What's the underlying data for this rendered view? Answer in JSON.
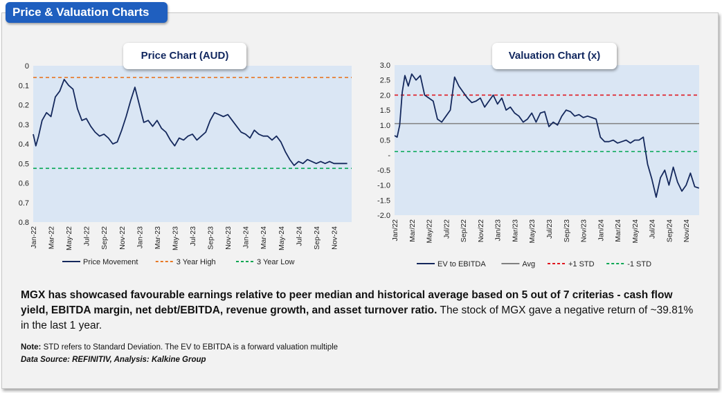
{
  "header": {
    "title": "Price & Valuation Charts"
  },
  "chart_data": [
    {
      "type": "line",
      "title": "Price Chart (AUD)",
      "x_tick_labels": [
        "Jan-22",
        "Mar-22",
        "May-22",
        "Jul-22",
        "Sep-22",
        "Nov-22",
        "Jan-23",
        "Mar-23",
        "May-23",
        "Jul-23",
        "Sep-23",
        "Nov-23",
        "Jan-24",
        "Mar-24",
        "May-24",
        "Jul-24",
        "Sep-24",
        "Nov-24"
      ],
      "y_ticks": [
        "0",
        "0.1",
        "0.2",
        "0.3",
        "0.4",
        "0.5",
        "0.6",
        "0.7",
        "0.8"
      ],
      "ylim": [
        0,
        0.8
      ],
      "xlim": [
        0,
        36
      ],
      "legend": [
        "Price Movement",
        "3 Year High",
        "3 Year Low"
      ],
      "reference_lines": [
        {
          "name": "3 Year High",
          "value": 0.74,
          "color": "#e87722",
          "dash": true
        },
        {
          "name": "3 Year Low",
          "value": 0.275,
          "color": "#00a651",
          "dash": true
        }
      ],
      "series": [
        {
          "name": "Price Movement",
          "color": "#14285c",
          "x": [
            0,
            0.3,
            0.6,
            1,
            1.5,
            2,
            2.5,
            3,
            3.5,
            4,
            4.5,
            5,
            5.5,
            6,
            6.5,
            7,
            7.5,
            8,
            8.5,
            9,
            9.5,
            10,
            10.5,
            11,
            11.5,
            12,
            12.5,
            13,
            13.5,
            14,
            14.5,
            15,
            15.5,
            16,
            16.5,
            17,
            17.5,
            18,
            18.5,
            19,
            19.5,
            20,
            20.5,
            21,
            21.5,
            22,
            22.5,
            23,
            23.5,
            24,
            24.5,
            25,
            25.5,
            26,
            26.5,
            27,
            27.5,
            28,
            28.5,
            29,
            29.5,
            30,
            30.5,
            31,
            31.5,
            32,
            32.5,
            33,
            33.5,
            34,
            34.5,
            35,
            35.5
          ],
          "values": [
            0.45,
            0.39,
            0.44,
            0.52,
            0.56,
            0.54,
            0.64,
            0.67,
            0.73,
            0.7,
            0.68,
            0.58,
            0.52,
            0.53,
            0.49,
            0.46,
            0.44,
            0.45,
            0.43,
            0.4,
            0.41,
            0.47,
            0.54,
            0.62,
            0.69,
            0.6,
            0.51,
            0.52,
            0.49,
            0.52,
            0.48,
            0.46,
            0.42,
            0.39,
            0.43,
            0.42,
            0.44,
            0.45,
            0.42,
            0.44,
            0.46,
            0.52,
            0.56,
            0.55,
            0.54,
            0.55,
            0.52,
            0.49,
            0.46,
            0.45,
            0.43,
            0.47,
            0.45,
            0.44,
            0.44,
            0.42,
            0.44,
            0.41,
            0.36,
            0.32,
            0.29,
            0.31,
            0.3,
            0.32,
            0.31,
            0.3,
            0.31,
            0.3,
            0.31,
            0.3,
            0.3,
            0.3,
            0.3
          ]
        }
      ]
    },
    {
      "type": "line",
      "title": "Valuation Chart (x)",
      "x_tick_labels": [
        "Jan/22",
        "Mar/22",
        "May/22",
        "Jul/22",
        "Sep/22",
        "Nov/22",
        "Jan/23",
        "Mar/23",
        "May/23",
        "Jul/23",
        "Sep/23",
        "Nov/23",
        "Jan/24",
        "Mar/24",
        "May/24",
        "Jul/24",
        "Sep/24",
        "Nov/24"
      ],
      "y_ticks": [
        "3.0",
        "2.5",
        "2.0",
        "1.5",
        "1.0",
        "0.5",
        "-",
        "-0.5",
        "-1.0",
        "-1.5",
        "-2.0"
      ],
      "ylim": [
        -2.0,
        3.0
      ],
      "xlim": [
        0,
        36
      ],
      "legend": [
        "EV to EBITDA",
        "Avg",
        "+1 STD",
        "-1 STD"
      ],
      "reference_lines": [
        {
          "name": "Avg",
          "value": 1.05,
          "color": "#808080",
          "dash": false
        },
        {
          "name": "+1 STD",
          "value": 2.0,
          "color": "#e0161e",
          "dash": true
        },
        {
          "name": "-1 STD",
          "value": 0.12,
          "color": "#00a651",
          "dash": true
        }
      ],
      "series": [
        {
          "name": "EV to EBITDA",
          "color": "#14285c",
          "x": [
            0,
            0.3,
            0.6,
            0.9,
            1.2,
            1.6,
            2,
            2.5,
            3,
            3.5,
            4,
            4.5,
            5,
            5.5,
            6,
            6.5,
            7,
            7.5,
            8,
            8.5,
            9,
            9.5,
            10,
            10.5,
            11,
            11.5,
            12,
            12.5,
            13,
            13.5,
            14,
            14.5,
            15,
            15.5,
            16,
            16.5,
            17,
            17.5,
            18,
            18.5,
            19,
            19.5,
            20,
            20.5,
            21,
            21.5,
            22,
            22.5,
            23,
            23.5,
            24,
            24.5,
            25,
            25.5,
            26,
            26.5,
            27,
            27.5,
            28,
            28.5,
            29,
            29.5,
            30,
            30.5,
            31,
            31.5,
            32,
            32.5,
            33,
            33.5,
            34,
            34.5,
            35,
            35.5
          ],
          "values": [
            0.65,
            0.6,
            1.0,
            2.1,
            2.65,
            2.3,
            2.7,
            2.5,
            2.65,
            2.0,
            1.9,
            1.8,
            1.2,
            1.1,
            1.3,
            1.5,
            2.6,
            2.3,
            2.1,
            1.9,
            1.75,
            1.8,
            1.9,
            1.6,
            1.8,
            2.0,
            1.7,
            1.9,
            1.5,
            1.6,
            1.4,
            1.3,
            1.1,
            1.2,
            1.4,
            1.1,
            1.4,
            1.45,
            0.95,
            1.1,
            1.0,
            1.3,
            1.5,
            1.45,
            1.3,
            1.35,
            1.25,
            1.3,
            1.25,
            1.2,
            0.6,
            0.45,
            0.45,
            0.5,
            0.4,
            0.45,
            0.5,
            0.4,
            0.5,
            0.5,
            0.6,
            -0.3,
            -0.8,
            -1.4,
            -0.75,
            -0.5,
            -1.0,
            -0.4,
            -0.9,
            -1.2,
            -1.0,
            -0.6,
            -1.05,
            -1.1
          ]
        }
      ]
    }
  ],
  "description": {
    "bold": "MGX has showcased favourable earnings relative to peer median and historical average based on 5 out of 7 criterias - cash flow yield, EBITDA margin, net debt/EBITDA, revenue growth, and asset turnover ratio.",
    "normal": " The stock of MGX gave a negative return of ~39.81% in the last 1 year."
  },
  "note": {
    "label": "Note:",
    "text": " STD refers to Standard Deviation. The EV to EBITDA is a forward valuation multiple"
  },
  "source": "Data Source: REFINITIV, Analysis: Kalkine Group"
}
